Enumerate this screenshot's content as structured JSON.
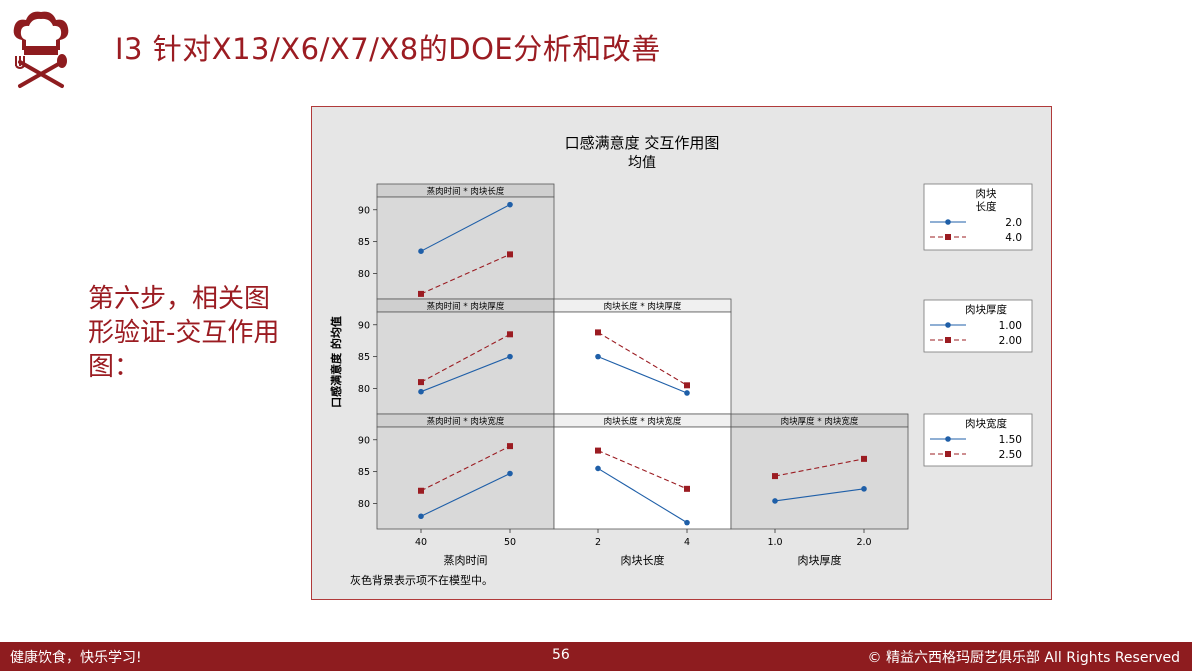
{
  "slide": {
    "title": "I3 针对X13/X6/X7/X8的DOE分析和改善",
    "side_text": "第六步，相关图形验证-交互作用图："
  },
  "footer": {
    "left": "健康饮食，快乐学习!",
    "page": "56",
    "right": "© 精益六西格玛厨艺俱乐部    All Rights Reserved"
  },
  "colors": {
    "brand": "#8e1c1f",
    "series_low": "#1f5fa8",
    "series_high": "#9b1c22",
    "shaded_panel": "#d9d9d9",
    "chart_background": "#e6e6e6"
  },
  "chart_data": {
    "type": "line",
    "title": "口感满意度 交互作用图",
    "subtitle": "均值",
    "ylabel": "口感满意度 的均值",
    "note": "灰色背景表示项不在模型中。",
    "ylim": [
      76,
      92
    ],
    "yticks": [
      80,
      85,
      90
    ],
    "factors": [
      {
        "name": "蒸肉时间",
        "levels": [
          "40",
          "50"
        ]
      },
      {
        "name": "肉块长度",
        "levels": [
          "2",
          "4"
        ]
      },
      {
        "name": "肉块厚度",
        "levels": [
          "1.0",
          "2.0"
        ]
      }
    ],
    "legends": [
      {
        "title": "肉块 长度",
        "entries": [
          "2.0",
          "4.0"
        ]
      },
      {
        "title": "肉块厚度",
        "entries": [
          "1.00",
          "2.00"
        ]
      },
      {
        "title": "肉块宽度",
        "entries": [
          "1.50",
          "2.50"
        ]
      }
    ],
    "panels": [
      {
        "label": "蒸肉时间 * 肉块长度",
        "row": 0,
        "col": 0,
        "shaded": true,
        "series": [
          {
            "name": "2.0",
            "values": [
              83.5,
              90.8
            ]
          },
          {
            "name": "4.0",
            "values": [
              76.8,
              83.0
            ]
          }
        ]
      },
      {
        "label": "蒸肉时间 * 肉块厚度",
        "row": 1,
        "col": 0,
        "shaded": true,
        "series": [
          {
            "name": "1.00",
            "values": [
              79.5,
              85.0
            ]
          },
          {
            "name": "2.00",
            "values": [
              81.0,
              88.5
            ]
          }
        ]
      },
      {
        "label": "肉块长度 * 肉块厚度",
        "row": 1,
        "col": 1,
        "shaded": false,
        "series": [
          {
            "name": "1.00",
            "values": [
              85.0,
              79.3
            ]
          },
          {
            "name": "2.00",
            "values": [
              88.8,
              80.5
            ]
          }
        ]
      },
      {
        "label": "蒸肉时间 * 肉块宽度",
        "row": 2,
        "col": 0,
        "shaded": true,
        "series": [
          {
            "name": "1.50",
            "values": [
              78.0,
              84.7
            ]
          },
          {
            "name": "2.50",
            "values": [
              82.0,
              89.0
            ]
          }
        ]
      },
      {
        "label": "肉块长度 * 肉块宽度",
        "row": 2,
        "col": 1,
        "shaded": false,
        "series": [
          {
            "name": "1.50",
            "values": [
              85.5,
              77.0
            ]
          },
          {
            "name": "2.50",
            "values": [
              88.3,
              82.3
            ]
          }
        ]
      },
      {
        "label": "肉块厚度 * 肉块宽度",
        "row": 2,
        "col": 2,
        "shaded": true,
        "series": [
          {
            "name": "1.50",
            "values": [
              80.4,
              82.3
            ]
          },
          {
            "name": "2.50",
            "values": [
              84.3,
              87.0
            ]
          }
        ]
      }
    ]
  }
}
